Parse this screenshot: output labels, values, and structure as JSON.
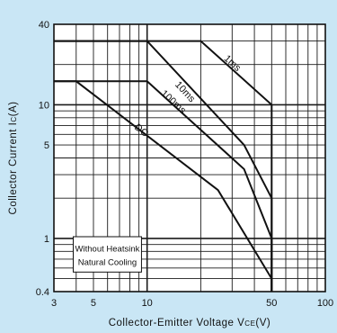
{
  "chart_data": {
    "type": "line",
    "xlabel_main": "Collector-Emitter Voltage V",
    "xlabel_sub": "CE",
    "xlabel_unit": "(V)",
    "ylabel_main": "Collector Current I",
    "ylabel_sub": "C",
    "ylabel_unit": "(A)",
    "xscale": "log",
    "yscale": "log",
    "xlim": [
      3,
      100
    ],
    "ylim": [
      0.4,
      40
    ],
    "grid": true,
    "x_ticks": [
      {
        "value": 3,
        "label": "3"
      },
      {
        "value": 5,
        "label": "5"
      },
      {
        "value": 10,
        "label": "10"
      },
      {
        "value": 50,
        "label": "50"
      },
      {
        "value": 100,
        "label": "100"
      }
    ],
    "y_ticks": [
      {
        "value": 0.4,
        "label": "0.4"
      },
      {
        "value": 1,
        "label": "1"
      },
      {
        "value": 5,
        "label": "5"
      },
      {
        "value": 10,
        "label": "10"
      },
      {
        "value": 40,
        "label": "40"
      }
    ],
    "series": [
      {
        "name": "1ms",
        "points": [
          [
            3,
            30
          ],
          [
            20,
            30
          ],
          [
            50,
            10
          ],
          [
            50,
            0.4
          ]
        ]
      },
      {
        "name": "10ms",
        "points": [
          [
            3,
            30
          ],
          [
            10,
            30
          ],
          [
            35,
            5
          ],
          [
            50,
            2
          ],
          [
            50,
            0.4
          ]
        ]
      },
      {
        "name": "100ms",
        "points": [
          [
            3,
            15
          ],
          [
            10,
            15
          ],
          [
            35,
            3.3
          ],
          [
            50,
            1
          ],
          [
            50,
            0.4
          ]
        ]
      },
      {
        "name": "DC",
        "points": [
          [
            3,
            15
          ],
          [
            4,
            15
          ],
          [
            25,
            2.3
          ],
          [
            50,
            0.5
          ],
          [
            50,
            0.4
          ]
        ]
      }
    ],
    "annotation": {
      "line1": "Without Heatsink",
      "line2": "Natural Cooling"
    },
    "colors": {
      "background": "#c9e6f5",
      "plot_background": "#ffffff",
      "grid": "#1a1a1a",
      "curves": "#111111"
    }
  }
}
